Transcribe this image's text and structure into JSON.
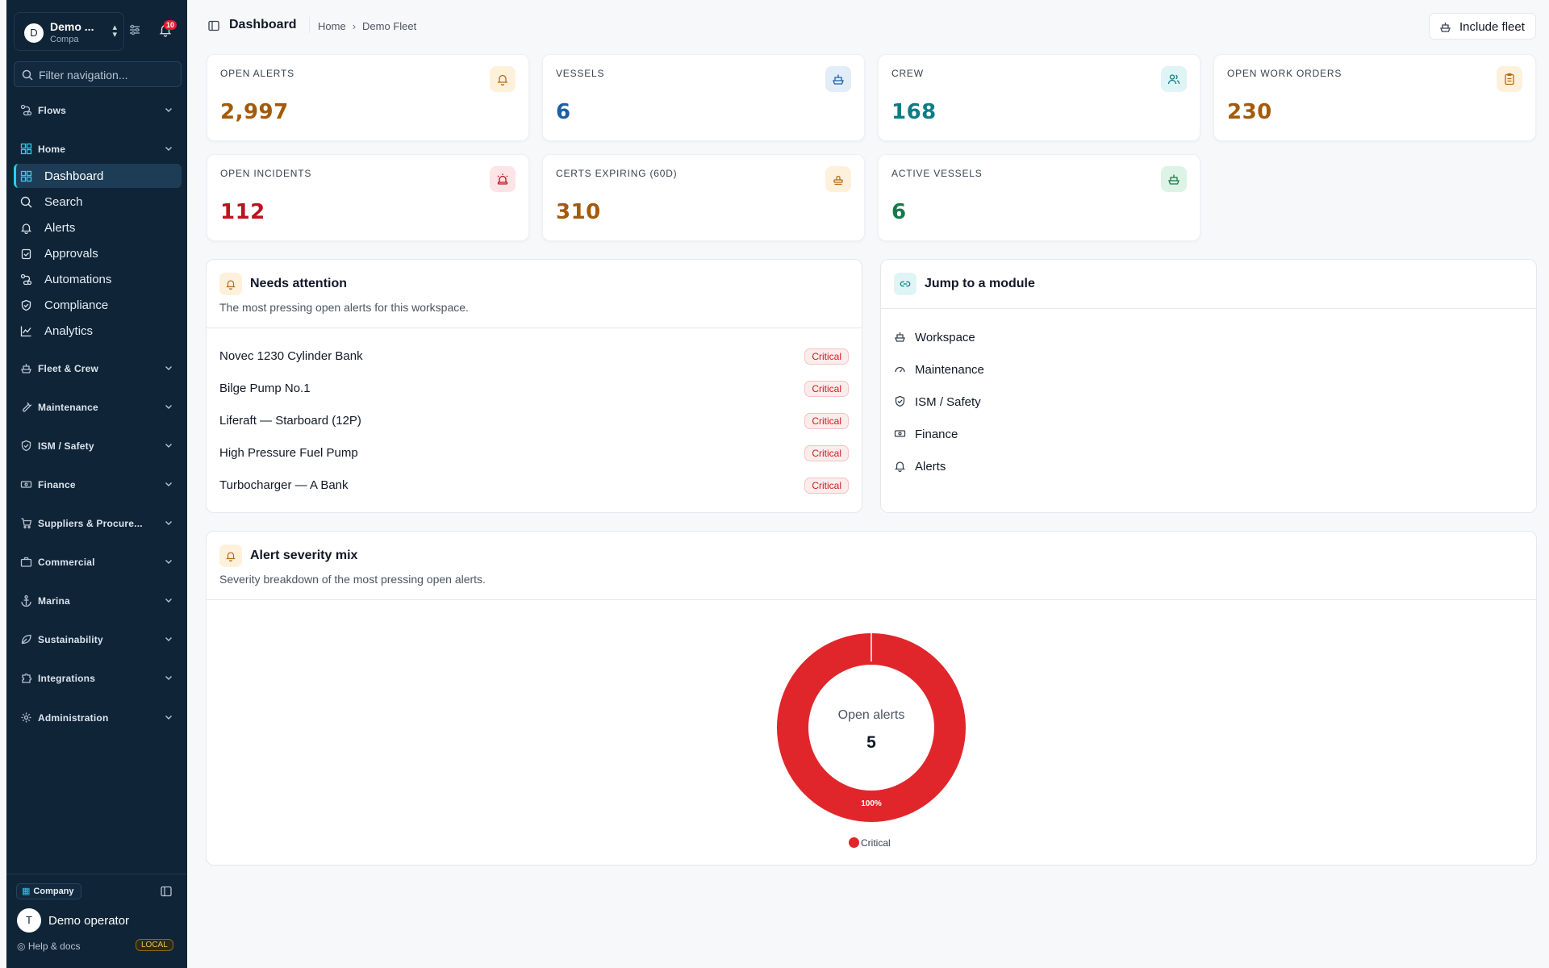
{
  "sidebar": {
    "workspace": {
      "avatar": "D",
      "name": "Demo ...",
      "sub": "Compa"
    },
    "notifications": {
      "count": "10"
    },
    "filter": {
      "placeholder": "Filter navigation..."
    },
    "groups": {
      "flows": "Flows",
      "home": "Home",
      "fleet": "Fleet & Crew",
      "maintenance": "Maintenance",
      "ism": "ISM / Safety",
      "finance": "Finance",
      "suppliers": "Suppliers & Procure...",
      "commercial": "Commercial",
      "marina": "Marina",
      "sustainability": "Sustainability",
      "integrations": "Integrations",
      "administration": "Administration"
    },
    "home_items": [
      "Dashboard",
      "Search",
      "Alerts",
      "Approvals",
      "Automations",
      "Compliance",
      "Analytics"
    ],
    "footer": {
      "company_chip": "Company",
      "user_avatar": "T",
      "user_name": "Demo operator",
      "help": "Help & docs",
      "env_badge": "LOCAL"
    },
    "accent": "#22d3ee"
  },
  "header": {
    "title": "Dashboard",
    "breadcrumb": [
      "Home",
      "Demo Fleet"
    ],
    "fleet_button": "Include fleet"
  },
  "kpis": [
    {
      "label": "OPEN ALERTS",
      "value": "2,997",
      "color": "#a35a0b",
      "icon": "bell-icon"
    },
    {
      "label": "VESSELS",
      "value": "6",
      "color": "#1d5fa8",
      "icon": "ship-icon"
    },
    {
      "label": "CREW",
      "value": "168",
      "color": "#0e7c86",
      "icon": "users-icon"
    },
    {
      "label": "OPEN WORK ORDERS",
      "value": "230",
      "color": "#a35a0b",
      "icon": "clipboard-icon"
    },
    {
      "label": "OPEN INCIDENTS",
      "value": "112",
      "color": "#c0111f",
      "icon": "siren-icon"
    },
    {
      "label": "CERTS EXPIRING (60D)",
      "value": "310",
      "color": "#a35a0b",
      "icon": "stamp-icon"
    },
    {
      "label": "ACTIVE VESSELS",
      "value": "6",
      "color": "#17794a",
      "icon": "ship-icon"
    }
  ],
  "attention": {
    "title": "Needs attention",
    "subtitle": "The most pressing open alerts for this workspace.",
    "alerts": [
      {
        "name": "Novec 1230 Cylinder Bank",
        "severity": "Critical"
      },
      {
        "name": "Bilge Pump No.1",
        "severity": "Critical"
      },
      {
        "name": "Liferaft — Starboard (12P)",
        "severity": "Critical"
      },
      {
        "name": "High Pressure Fuel Pump",
        "severity": "Critical"
      },
      {
        "name": "Turbocharger — A Bank",
        "severity": "Critical"
      }
    ]
  },
  "modules": {
    "title": "Jump to a module",
    "items": [
      "Workspace",
      "Maintenance",
      "ISM / Safety",
      "Finance",
      "Alerts"
    ]
  },
  "severity": {
    "title": "Alert severity mix",
    "subtitle": "Severity breakdown of the most pressing open alerts.",
    "center_label": "Open alerts",
    "center_value": "5"
  },
  "chart_data": {
    "type": "pie",
    "categories": [
      "Critical"
    ],
    "values": [
      5
    ],
    "slice_labels": [
      "100%"
    ],
    "colors": [
      "#e1262b"
    ],
    "legend": "bottom"
  }
}
